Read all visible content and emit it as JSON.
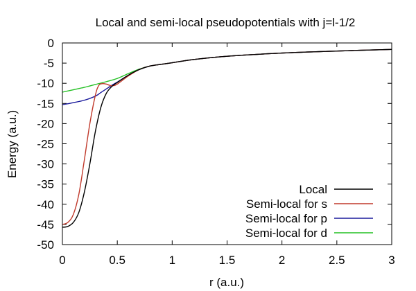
{
  "chart_data": {
    "type": "line",
    "title": "Local and semi-local pseudopotentials with j=l-1/2",
    "xlabel": "r (a.u.)",
    "ylabel": "Energy (a.u.)",
    "xlim": [
      0,
      3
    ],
    "ylim": [
      -50,
      0
    ],
    "xticks": [
      0,
      0.5,
      1,
      1.5,
      2,
      2.5,
      3
    ],
    "xtick_labels": [
      "0",
      "0.5",
      "1",
      "1.5",
      "2",
      "2.5",
      "3"
    ],
    "yticks": [
      0,
      -5,
      -10,
      -15,
      -20,
      -25,
      -30,
      -35,
      -40,
      -45,
      -50
    ],
    "ytick_labels": [
      "0",
      "-5",
      "-10",
      "-15",
      "-20",
      "-25",
      "-30",
      "-35",
      "-40",
      "-45",
      "-50"
    ],
    "grid": false,
    "legend_position": "bottom-right",
    "series": [
      {
        "name": "Local",
        "color": "#000000",
        "x": [
          0,
          0.05,
          0.1,
          0.15,
          0.2,
          0.25,
          0.3,
          0.35,
          0.4,
          0.45,
          0.5,
          0.6,
          0.7,
          0.8,
          0.9,
          1.0,
          1.2,
          1.5,
          2.0,
          2.5,
          3.0
        ],
        "y": [
          -45.7,
          -45.5,
          -44.5,
          -42,
          -37,
          -30,
          -22,
          -16,
          -12.5,
          -10.8,
          -9.8,
          -8,
          -6.6,
          -5.7,
          -5.3,
          -4.9,
          -4.1,
          -3.3,
          -2.5,
          -2.0,
          -1.6
        ]
      },
      {
        "name": "Semi-local for s",
        "color": "#c0392b",
        "x": [
          0,
          0.05,
          0.1,
          0.15,
          0.2,
          0.25,
          0.3,
          0.33,
          0.36,
          0.4,
          0.43,
          0.46,
          0.5,
          0.6,
          0.7,
          0.8,
          0.9,
          1.0,
          1.2,
          1.5,
          2.0,
          2.5,
          3.0
        ],
        "y": [
          -45.0,
          -44.5,
          -42.5,
          -37.5,
          -29,
          -20,
          -13,
          -10.6,
          -10.1,
          -10.2,
          -10.5,
          -10.6,
          -10.2,
          -8.2,
          -6.6,
          -5.7,
          -5.3,
          -4.9,
          -4.1,
          -3.3,
          -2.5,
          -2.0,
          -1.6
        ]
      },
      {
        "name": "Semi-local for p",
        "color": "#1a1a9c",
        "x": [
          0,
          0.1,
          0.2,
          0.3,
          0.35,
          0.4,
          0.45,
          0.5,
          0.6,
          0.7,
          0.8,
          0.9,
          1.0,
          1.2,
          1.5,
          2.0,
          2.5,
          3.0
        ],
        "y": [
          -15.3,
          -14.8,
          -14.2,
          -13.2,
          -12.3,
          -11.4,
          -10.5,
          -9.7,
          -8.0,
          -6.6,
          -5.7,
          -5.3,
          -4.9,
          -4.1,
          -3.3,
          -2.5,
          -2.0,
          -1.6
        ]
      },
      {
        "name": "Semi-local for d",
        "color": "#22c022",
        "x": [
          0,
          0.1,
          0.2,
          0.3,
          0.4,
          0.5,
          0.6,
          0.7,
          0.8,
          0.9,
          1.0,
          1.2,
          1.5,
          2.0,
          2.5,
          3.0
        ],
        "y": [
          -12.2,
          -11.6,
          -11.0,
          -10.3,
          -9.6,
          -8.8,
          -7.6,
          -6.5,
          -5.7,
          -5.3,
          -4.9,
          -4.1,
          -3.3,
          -2.5,
          -2.0,
          -1.6
        ]
      }
    ]
  }
}
